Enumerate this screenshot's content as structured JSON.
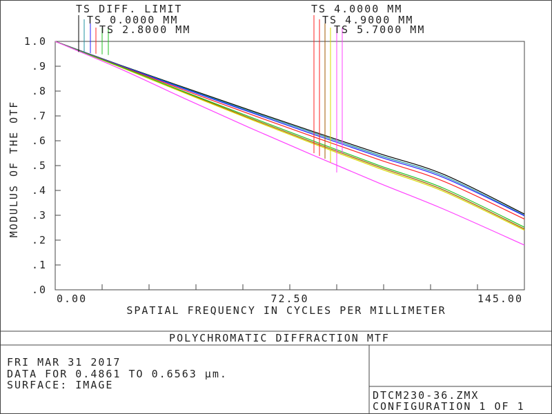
{
  "chart_data": {
    "type": "line",
    "title": "POLYCHROMATIC DIFFRACTION MTF",
    "xlabel": "SPATIAL FREQUENCY IN CYCLES PER MILLIMETER",
    "ylabel": "MODULUS OF THE OTF",
    "xlim": [
      0,
      145
    ],
    "ylim": [
      0,
      1
    ],
    "x_tick_labels": [
      "0.00",
      "72.50",
      "145.00"
    ],
    "x_tick_values": [
      0,
      72.5,
      145
    ],
    "y_tick_labels": [
      "1.0",
      ".9",
      ".8",
      ".7",
      ".6",
      ".5",
      ".4",
      ".3",
      ".2",
      ".1",
      ".0"
    ],
    "y_tick_values": [
      1.0,
      0.9,
      0.8,
      0.7,
      0.6,
      0.5,
      0.4,
      0.3,
      0.2,
      0.1,
      0.0
    ],
    "x": [
      0,
      20,
      40,
      60,
      80,
      100,
      120,
      145
    ],
    "series": [
      {
        "name": "TS DIFF. LIMIT",
        "color": "#000000",
        "values": [
          1.0,
          0.905,
          0.814,
          0.724,
          0.636,
          0.549,
          0.465,
          0.305
        ]
      },
      {
        "name": "TS 0.0000 MM",
        "color": "#1e90a0",
        "values": [
          1.0,
          0.904,
          0.811,
          0.72,
          0.631,
          0.542,
          0.458,
          0.3
        ]
      },
      {
        "name": "TS 2.8000 MM",
        "color": "#2020ff",
        "values": [
          1.0,
          0.903,
          0.808,
          0.716,
          0.625,
          0.536,
          0.452,
          0.298
        ]
      },
      {
        "name": "TS 4.0000 MM",
        "color": "#ff2020",
        "values": [
          1.0,
          0.901,
          0.803,
          0.708,
          0.615,
          0.524,
          0.437,
          0.285
        ]
      },
      {
        "name": "TS 4.9000 MM",
        "color": "#a05a00",
        "values": [
          1.0,
          0.898,
          0.795,
          0.692,
          0.592,
          0.495,
          0.402,
          0.245
        ]
      },
      {
        "name": "TS 5.7000 MM",
        "color": "#d8d800",
        "values": [
          1.0,
          0.897,
          0.792,
          0.688,
          0.587,
          0.489,
          0.396,
          0.24
        ]
      },
      {
        "name": "",
        "color": "#20c020",
        "values": [
          1.0,
          0.899,
          0.797,
          0.697,
          0.598,
          0.501,
          0.409,
          0.252
        ]
      },
      {
        "name": "",
        "color": "#ff40ff",
        "values": [
          1.0,
          0.89,
          0.77,
          0.653,
          0.54,
          0.43,
          0.325,
          0.18
        ]
      }
    ],
    "grid": false,
    "legend": "top"
  },
  "info": {
    "date": "FRI MAR 31 2017",
    "data_range": "DATA FOR 0.4861 TO 0.6563 μm.",
    "surface": "SURFACE: IMAGE",
    "file": "DTCM230-36.ZMX",
    "config": "CONFIGURATION 1 OF 1"
  }
}
